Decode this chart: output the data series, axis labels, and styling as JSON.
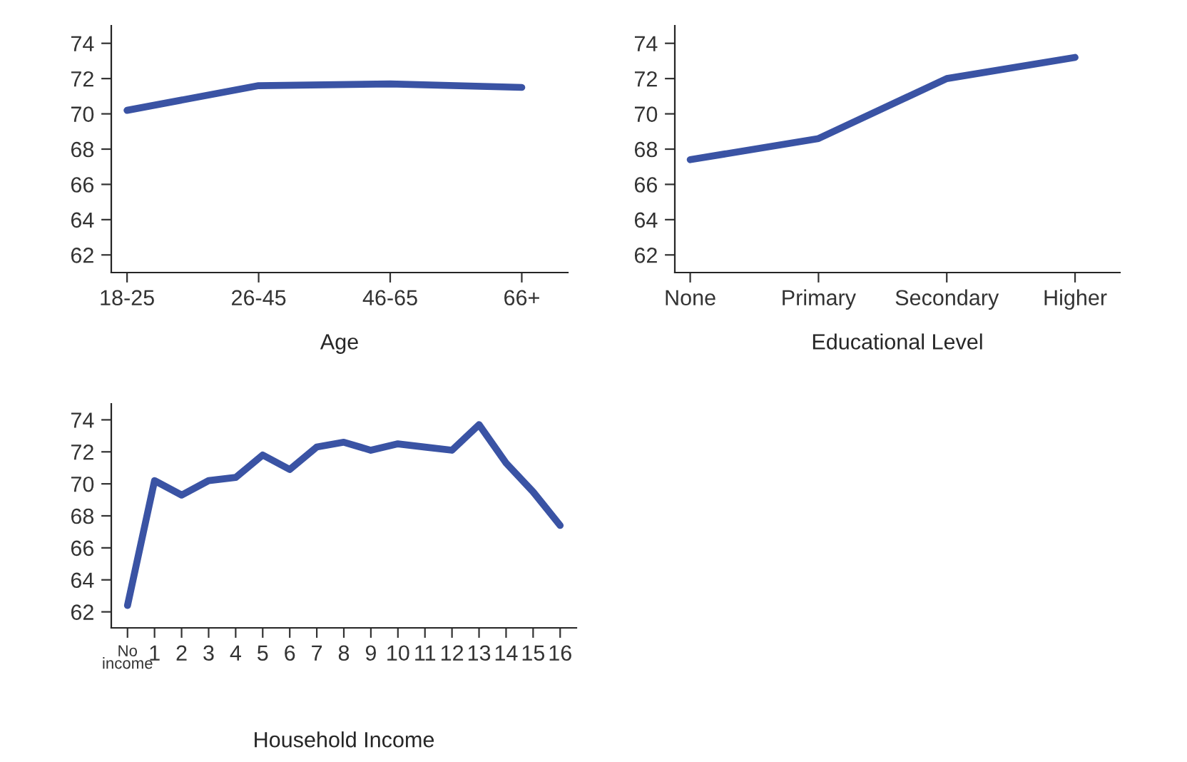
{
  "chart_data": [
    {
      "type": "line",
      "xlabel": "Age",
      "categories": [
        "18-25",
        "26-45",
        "46-65",
        "66+"
      ],
      "series": [
        {
          "color": "#3a53a4",
          "values": [
            70.2,
            71.6,
            71.7,
            71.5
          ]
        }
      ],
      "ylim": [
        61,
        75
      ],
      "yticks": [
        62,
        64,
        66,
        68,
        70,
        72,
        74
      ],
      "grid": false,
      "legend": false
    },
    {
      "type": "line",
      "xlabel": "Educational Level",
      "categories": [
        "None",
        "Primary",
        "Secondary",
        "Higher"
      ],
      "series": [
        {
          "color": "#3a53a4",
          "values": [
            67.4,
            68.6,
            72.0,
            73.2
          ]
        }
      ],
      "ylim": [
        61,
        75
      ],
      "yticks": [
        62,
        64,
        66,
        68,
        70,
        72,
        74
      ],
      "grid": false,
      "legend": false
    },
    {
      "type": "line",
      "xlabel": "Household Income",
      "categories": [
        "No\nincome",
        "1",
        "2",
        "3",
        "4",
        "5",
        "6",
        "7",
        "8",
        "9",
        "10",
        "11",
        "12",
        "13",
        "14",
        "15",
        "16"
      ],
      "series": [
        {
          "color": "#3a53a4",
          "values": [
            62.4,
            70.2,
            69.3,
            70.2,
            70.4,
            71.8,
            70.9,
            72.3,
            72.6,
            72.1,
            72.5,
            72.3,
            72.1,
            73.7,
            71.3,
            69.5,
            67.4
          ]
        }
      ],
      "ylim": [
        61,
        75
      ],
      "yticks": [
        62,
        64,
        66,
        68,
        70,
        72,
        74
      ],
      "grid": false,
      "legend": false
    }
  ]
}
